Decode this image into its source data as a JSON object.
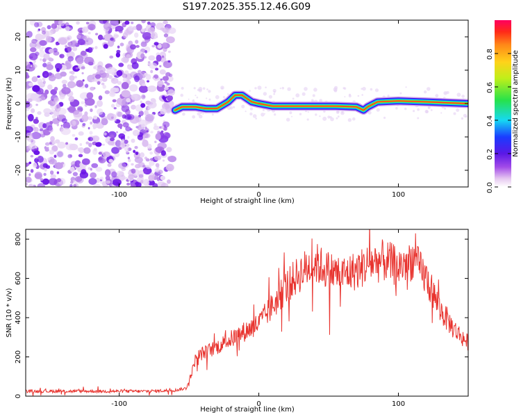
{
  "title": "S197.2025.355.12.46.G09",
  "chart_data": [
    {
      "type": "heatmap",
      "title": "S197.2025.355.12.46.G09",
      "xlabel": "Height of straight line (km)",
      "ylabel": "Frequency (Hz)",
      "xlim": [
        -167,
        150
      ],
      "ylim": [
        -25,
        25
      ],
      "xticks": [
        -100,
        0,
        100
      ],
      "yticks": [
        -20,
        -10,
        0,
        10,
        20
      ],
      "noise_region": [
        -167,
        -62
      ],
      "ridge": {
        "x": [
          -60,
          -55,
          -45,
          -38,
          -30,
          -22,
          -17,
          -12,
          -5,
          0,
          10,
          40,
          55,
          70,
          75,
          78,
          85,
          100,
          120,
          150
        ],
        "freq": [
          -2.0,
          -1.0,
          -1.0,
          -1.5,
          -1.5,
          0.5,
          2.5,
          2.5,
          0.5,
          0.0,
          -0.8,
          -0.8,
          -0.8,
          -1.0,
          -2.0,
          -1.0,
          0.5,
          0.8,
          0.5,
          0.0
        ]
      },
      "colorbar": {
        "label": "Normalized spectral amplitude",
        "range": [
          0,
          1
        ],
        "ticks": [
          "0.0",
          "0.2",
          "0.4",
          "0.6",
          "0.8"
        ]
      }
    },
    {
      "type": "line",
      "xlabel": "Height of straight line (km)",
      "ylabel": "SNR (10 * v/v)",
      "xlim": [
        -167,
        150
      ],
      "ylim": [
        0,
        850
      ],
      "xticks": [
        -100,
        0,
        100
      ],
      "yticks": [
        0,
        200,
        400,
        600,
        800
      ],
      "series": [
        {
          "name": "SNR",
          "color": "#e8332e",
          "x": [
            -167,
            -140,
            -120,
            -100,
            -80,
            -60,
            -52,
            -48,
            -45,
            -40,
            -30,
            -20,
            -10,
            0,
            10,
            20,
            30,
            40,
            50,
            60,
            70,
            80,
            90,
            100,
            110,
            120,
            130,
            140,
            150
          ],
          "y": [
            25,
            25,
            25,
            25,
            25,
            30,
            40,
            120,
            200,
            220,
            250,
            290,
            330,
            370,
            460,
            560,
            630,
            680,
            640,
            620,
            640,
            680,
            690,
            660,
            700,
            600,
            440,
            340,
            270
          ]
        }
      ]
    }
  ]
}
